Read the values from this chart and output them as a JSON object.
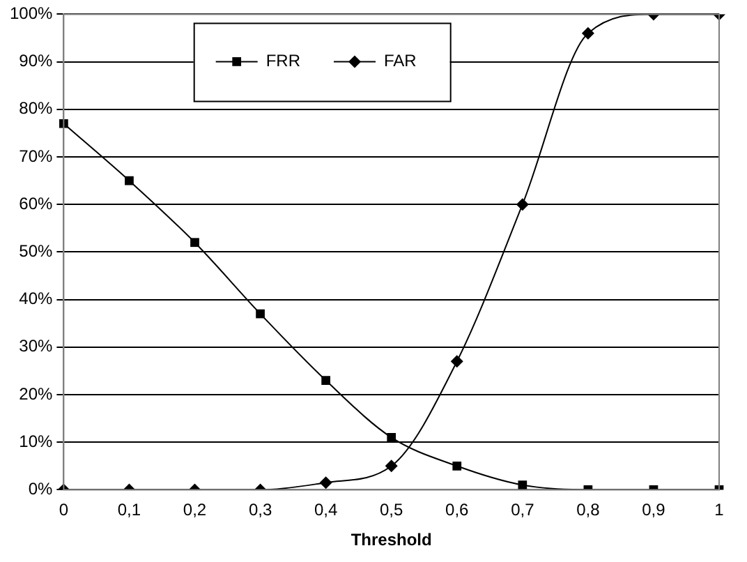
{
  "chart_data": {
    "type": "line",
    "xlabel": "Threshold",
    "categories": [
      "0",
      "0,1",
      "0,2",
      "0,3",
      "0,4",
      "0,5",
      "0,6",
      "0,7",
      "0,8",
      "0,9",
      "1"
    ],
    "series": [
      {
        "name": "FRR",
        "color": "#000000",
        "marker": "square",
        "values": [
          77,
          65,
          52,
          37,
          23,
          11,
          5,
          1,
          0,
          0,
          0
        ]
      },
      {
        "name": "FAR",
        "color": "#000000",
        "marker": "diamond",
        "values": [
          0,
          0,
          0,
          0,
          1.5,
          5,
          27,
          60,
          96,
          100,
          100
        ]
      }
    ],
    "ylim": [
      0,
      100
    ],
    "yticks": [
      {
        "value": 0,
        "label": "0%"
      },
      {
        "value": 10,
        "label": "10%"
      },
      {
        "value": 20,
        "label": "20%"
      },
      {
        "value": 30,
        "label": "30%"
      },
      {
        "value": 40,
        "label": "40%"
      },
      {
        "value": 50,
        "label": "50%"
      },
      {
        "value": 60,
        "label": "60%"
      },
      {
        "value": 70,
        "label": "70%"
      },
      {
        "value": 80,
        "label": "80%"
      },
      {
        "value": 90,
        "label": "90%"
      },
      {
        "value": 100,
        "label": "100%"
      }
    ],
    "grid": "y",
    "legend": "top",
    "line_style": "solid"
  }
}
